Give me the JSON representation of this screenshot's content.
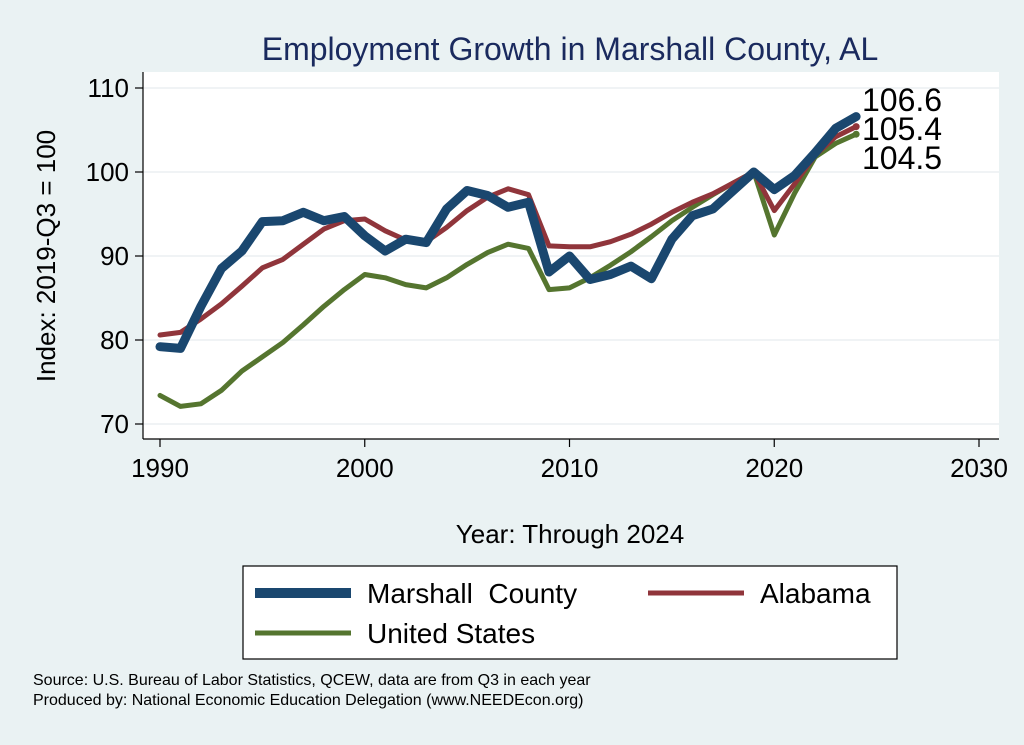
{
  "chart_data": {
    "type": "line",
    "title": "Employment Growth in Marshall County, AL",
    "xlabel": "Year: Through 2024",
    "ylabel": "Index: 2019-Q3 = 100",
    "xlim": [
      1990,
      2030
    ],
    "ylim": [
      68,
      112
    ],
    "xticks": [
      1990,
      2000,
      2010,
      2020,
      2030
    ],
    "yticks": [
      70,
      80,
      90,
      100,
      110
    ],
    "grid": true,
    "x": [
      1990,
      1991,
      1992,
      1993,
      1994,
      1995,
      1996,
      1997,
      1998,
      1999,
      2000,
      2001,
      2002,
      2003,
      2004,
      2005,
      2006,
      2007,
      2008,
      2009,
      2010,
      2011,
      2012,
      2013,
      2014,
      2015,
      2016,
      2017,
      2018,
      2019,
      2020,
      2021,
      2022,
      2023,
      2024
    ],
    "series": [
      {
        "name": "Marshall  County",
        "color": "#1a476f",
        "values": [
          79.2,
          79.0,
          84.0,
          88.5,
          90.6,
          94.1,
          94.2,
          95.2,
          94.2,
          94.7,
          92.4,
          90.6,
          92.0,
          91.6,
          95.6,
          97.8,
          97.2,
          95.8,
          96.4,
          88.1,
          90.0,
          87.2,
          87.8,
          88.8,
          87.3,
          92.0,
          94.8,
          95.6,
          97.8,
          100.0,
          97.9,
          99.6,
          102.3,
          105.2,
          106.6
        ],
        "end_label": "106.6"
      },
      {
        "name": "Alabama",
        "color": "#90353b",
        "values": [
          80.6,
          80.9,
          82.5,
          84.3,
          86.4,
          88.6,
          89.6,
          91.4,
          93.2,
          94.2,
          94.4,
          93.0,
          91.9,
          91.7,
          93.4,
          95.4,
          97.0,
          98.0,
          97.3,
          91.2,
          91.1,
          91.1,
          91.7,
          92.6,
          93.8,
          95.2,
          96.4,
          97.4,
          98.7,
          100.0,
          95.4,
          98.6,
          102.0,
          104.2,
          105.4
        ],
        "end_label": "105.4"
      },
      {
        "name": "United States",
        "color": "#55752f",
        "values": [
          73.4,
          72.1,
          72.4,
          74.0,
          76.3,
          78.0,
          79.7,
          81.8,
          84.0,
          86.0,
          87.8,
          87.4,
          86.6,
          86.2,
          87.4,
          89.0,
          90.4,
          91.4,
          90.9,
          86.0,
          86.2,
          87.4,
          88.9,
          90.5,
          92.3,
          94.2,
          95.8,
          97.3,
          98.7,
          100.0,
          92.5,
          97.5,
          101.8,
          103.4,
          104.5
        ],
        "end_label": "104.5"
      }
    ]
  },
  "source_line1": "Source: U.S. Bureau of Labor Statistics, QCEW, data are from Q3 in each year",
  "source_line2": "Produced by: National Economic Education Delegation (www.NEEDEcon.org)"
}
